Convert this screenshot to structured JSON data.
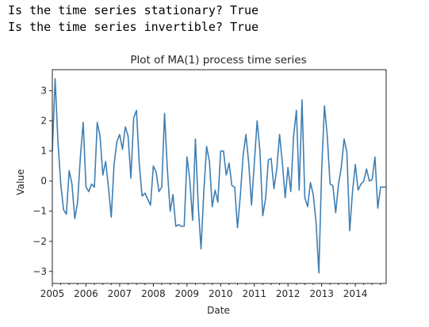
{
  "output": {
    "stationary_line": "Is the time series stationary? True",
    "invertible_line": "Is the time series invertible? True"
  },
  "colors": {
    "line": "#3f7fb3",
    "axes": "#262626",
    "text": "#000000"
  },
  "chart_data": {
    "type": "line",
    "title": "Plot of MA(1) process time series",
    "xlabel": "Date",
    "ylabel": "Value",
    "xlim": [
      "2005-01",
      "2014-12"
    ],
    "ylim": [
      -3.4,
      3.7
    ],
    "grid": false,
    "x_tick_labels": [
      "2005",
      "2006",
      "2007",
      "2008",
      "2009",
      "2010",
      "2011",
      "2012",
      "2013",
      "2014"
    ],
    "y_tick_labels": [
      "3",
      "2",
      "1",
      "0",
      "−1",
      "−2",
      "−3"
    ],
    "y_ticks": [
      3,
      2,
      1,
      0,
      -1,
      -2,
      -3
    ],
    "frequency": "monthly",
    "x": [
      "2005-01",
      "2005-02",
      "2005-03",
      "2005-04",
      "2005-05",
      "2005-06",
      "2005-07",
      "2005-08",
      "2005-09",
      "2005-10",
      "2005-11",
      "2005-12",
      "2006-01",
      "2006-02",
      "2006-03",
      "2006-04",
      "2006-05",
      "2006-06",
      "2006-07",
      "2006-08",
      "2006-09",
      "2006-10",
      "2006-11",
      "2006-12",
      "2007-01",
      "2007-02",
      "2007-03",
      "2007-04",
      "2007-05",
      "2007-06",
      "2007-07",
      "2007-08",
      "2007-09",
      "2007-10",
      "2007-11",
      "2007-12",
      "2008-01",
      "2008-02",
      "2008-03",
      "2008-04",
      "2008-05",
      "2008-06",
      "2008-07",
      "2008-08",
      "2008-09",
      "2008-10",
      "2008-11",
      "2008-12",
      "2009-01",
      "2009-02",
      "2009-03",
      "2009-04",
      "2009-05",
      "2009-06",
      "2009-07",
      "2009-08",
      "2009-09",
      "2009-10",
      "2009-11",
      "2009-12",
      "2010-01",
      "2010-02",
      "2010-03",
      "2010-04",
      "2010-05",
      "2010-06",
      "2010-07",
      "2010-08",
      "2010-09",
      "2010-10",
      "2010-11",
      "2010-12",
      "2011-01",
      "2011-02",
      "2011-03",
      "2011-04",
      "2011-05",
      "2011-06",
      "2011-07",
      "2011-08",
      "2011-09",
      "2011-10",
      "2011-11",
      "2011-12",
      "2012-01",
      "2012-02",
      "2012-03",
      "2012-04",
      "2012-05",
      "2012-06",
      "2012-07",
      "2012-08",
      "2012-09",
      "2012-10",
      "2012-11",
      "2012-12",
      "2013-01",
      "2013-02",
      "2013-03",
      "2013-04",
      "2013-05",
      "2013-06",
      "2013-07",
      "2013-08",
      "2013-09",
      "2013-10",
      "2013-11",
      "2013-12",
      "2014-01",
      "2014-02",
      "2014-03",
      "2014-04",
      "2014-05",
      "2014-06",
      "2014-07",
      "2014-08",
      "2014-09",
      "2014-10",
      "2014-11",
      "2014-12"
    ],
    "values": [
      1.0,
      3.4,
      1.3,
      -0.1,
      -0.95,
      -1.1,
      0.35,
      -0.1,
      -1.25,
      -0.7,
      0.8,
      1.95,
      -0.2,
      -0.35,
      -0.1,
      -0.2,
      1.95,
      1.5,
      0.2,
      0.65,
      -0.2,
      -1.2,
      0.55,
      1.3,
      1.55,
      1.05,
      1.8,
      1.5,
      0.1,
      2.1,
      2.35,
      0.55,
      -0.5,
      -0.4,
      -0.6,
      -0.8,
      0.5,
      0.3,
      -0.35,
      -0.2,
      2.25,
      0.4,
      -1.0,
      -0.45,
      -1.5,
      -1.45,
      -1.5,
      -1.5,
      0.8,
      0.05,
      -1.3,
      1.4,
      -0.8,
      -2.25,
      -0.35,
      1.15,
      0.65,
      -0.85,
      -0.3,
      -0.7,
      1.0,
      1.0,
      0.2,
      0.6,
      -0.15,
      -0.2,
      -1.55,
      -0.5,
      0.85,
      1.55,
      0.6,
      -0.8,
      0.6,
      2.0,
      1.0,
      -1.15,
      -0.6,
      0.7,
      0.75,
      -0.25,
      0.4,
      1.55,
      0.6,
      -0.55,
      0.45,
      -0.35,
      1.5,
      2.35,
      -0.3,
      2.7,
      -0.55,
      -0.85,
      -0.05,
      -0.45,
      -1.35,
      -3.05,
      0.35,
      2.5,
      1.5,
      -0.1,
      -0.15,
      -1.05,
      -0.1,
      0.45,
      1.4,
      0.95,
      -1.65,
      -0.35,
      0.55,
      -0.3,
      -0.1,
      0.0,
      0.4,
      0.0,
      0.05,
      0.8,
      -0.9,
      -0.2,
      -0.2,
      -0.2
    ]
  }
}
